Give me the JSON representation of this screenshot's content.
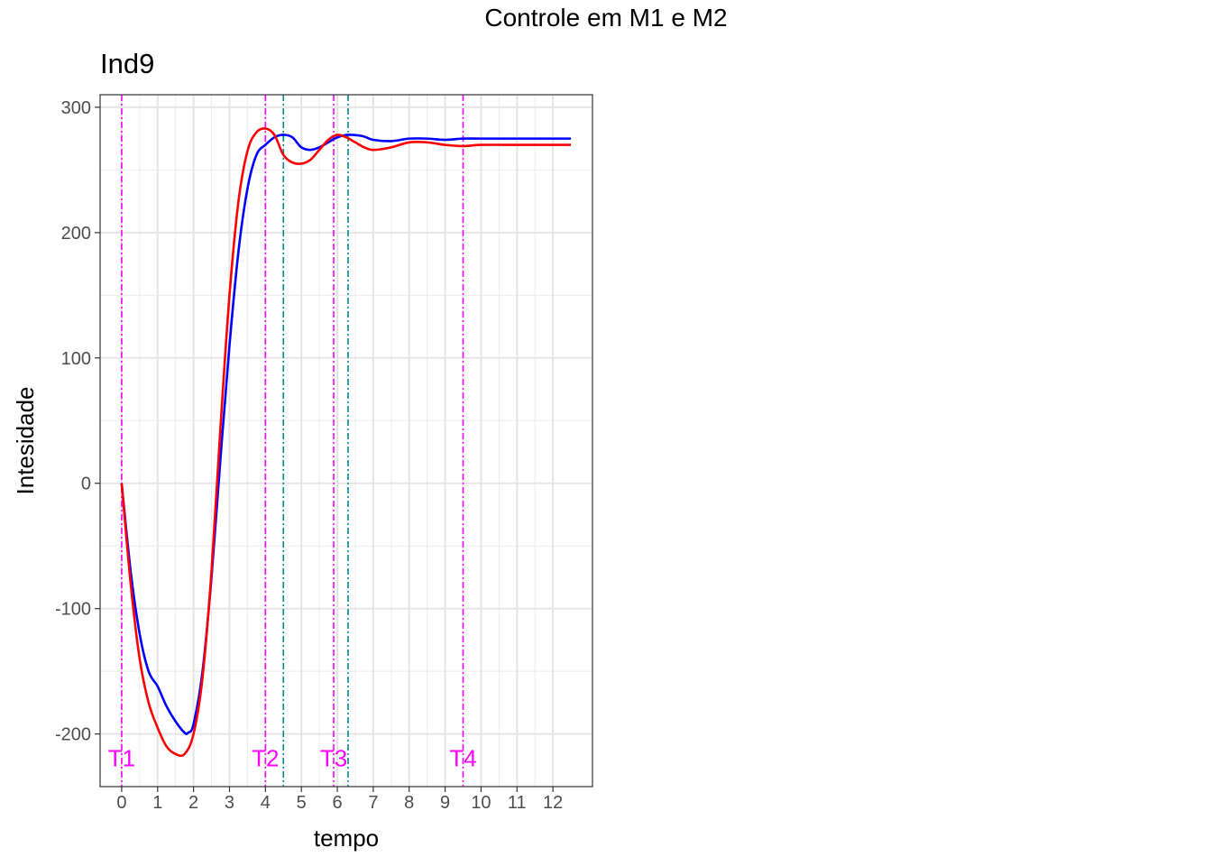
{
  "figure": {
    "title": "Controle em M1 e M2"
  },
  "chart_data": {
    "type": "line",
    "title": "Ind9",
    "xlabel": "tempo",
    "ylabel": "Intesidade",
    "xlim": [
      -0.6,
      13.1
    ],
    "ylim": [
      -242,
      310
    ],
    "x_ticks": [
      0,
      1,
      2,
      3,
      4,
      5,
      6,
      7,
      8,
      9,
      10,
      11,
      12
    ],
    "y_ticks": [
      -200,
      -100,
      0,
      100,
      200,
      300
    ],
    "grid": true,
    "colors": {
      "blue": "#0000ff",
      "red": "#ff0000",
      "magenta": "#ff00ff",
      "teal": "#008b8b"
    },
    "series": [
      {
        "color": "blue",
        "x": [
          0,
          0.25,
          0.5,
          0.75,
          1.0,
          1.25,
          1.5,
          1.75,
          1.85,
          2.0,
          2.25,
          2.5,
          2.75,
          3.0,
          3.25,
          3.5,
          3.75,
          4.0,
          4.25,
          4.5,
          4.75,
          5.0,
          5.25,
          5.5,
          5.75,
          6.0,
          6.3,
          6.7,
          7.0,
          7.5,
          8.0,
          8.5,
          9.0,
          9.5,
          10.0,
          11.0,
          12.0,
          12.5
        ],
        "values": [
          0,
          -70,
          -120,
          -150,
          -162,
          -178,
          -190,
          -199,
          -199,
          -192,
          -150,
          -75,
          20,
          110,
          185,
          235,
          262,
          270,
          276,
          278,
          276,
          268,
          266,
          268,
          272,
          276,
          278,
          277,
          274,
          273,
          275,
          275,
          274,
          275,
          275,
          275,
          275,
          275
        ]
      },
      {
        "color": "red",
        "x": [
          0,
          0.25,
          0.5,
          0.75,
          1.0,
          1.25,
          1.5,
          1.75,
          2.0,
          2.25,
          2.5,
          2.75,
          3.0,
          3.25,
          3.5,
          3.75,
          4.0,
          4.25,
          4.5,
          4.75,
          5.0,
          5.25,
          5.5,
          5.75,
          6.0,
          6.25,
          6.5,
          6.75,
          7.0,
          7.5,
          8.0,
          8.5,
          9.0,
          9.5,
          10.0,
          11.0,
          12.0,
          12.5
        ],
        "values": [
          0,
          -80,
          -140,
          -175,
          -195,
          -210,
          -216,
          -216,
          -200,
          -155,
          -70,
          45,
          150,
          225,
          265,
          280,
          283,
          278,
          262,
          256,
          255,
          258,
          266,
          274,
          278,
          276,
          272,
          268,
          266,
          268,
          272,
          272,
          270,
          269,
          270,
          270,
          270,
          270
        ]
      }
    ],
    "vlines": [
      {
        "x": 0,
        "color": "magenta",
        "label": "T1"
      },
      {
        "x": 4,
        "color": "magenta",
        "label": "T2"
      },
      {
        "x": 4.5,
        "color": "teal",
        "label": ""
      },
      {
        "x": 5.9,
        "color": "magenta",
        "label": "T3"
      },
      {
        "x": 6.3,
        "color": "teal",
        "label": ""
      },
      {
        "x": 9.5,
        "color": "magenta",
        "label": "T4"
      }
    ]
  }
}
